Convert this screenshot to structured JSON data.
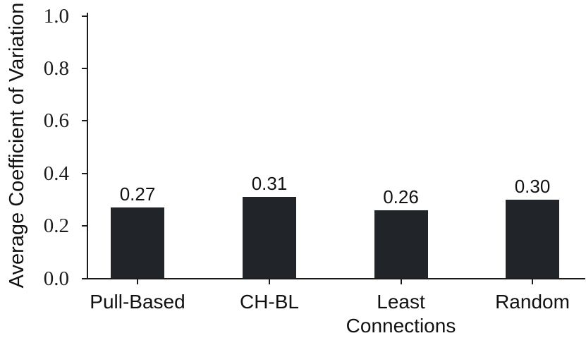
{
  "chart_data": {
    "type": "bar",
    "title": "",
    "categories": [
      "Pull-Based",
      "CH-BL",
      "Least Connections",
      "Random"
    ],
    "category_display_lines": [
      [
        "Pull-Based"
      ],
      [
        "CH-BL"
      ],
      [
        "Least",
        "Connections"
      ],
      [
        "Random"
      ]
    ],
    "values": [
      0.27,
      0.31,
      0.26,
      0.3
    ],
    "bar_value_labels": [
      "0.27",
      "0.31",
      "0.26",
      "0.30"
    ],
    "xlabel": "",
    "ylabel": "Average Coefficient of Variation",
    "ylim": [
      0.0,
      1.0
    ],
    "yticks": [
      0.0,
      0.2,
      0.4,
      0.6,
      0.8,
      1.0
    ],
    "ytick_labels": [
      "0.0",
      "0.2",
      "0.4",
      "0.6",
      "0.8",
      "1.0"
    ],
    "grid": false,
    "legend": null,
    "bar_color": "#212529",
    "axis_color": "#1c1c1c",
    "text_color": "#111111"
  }
}
